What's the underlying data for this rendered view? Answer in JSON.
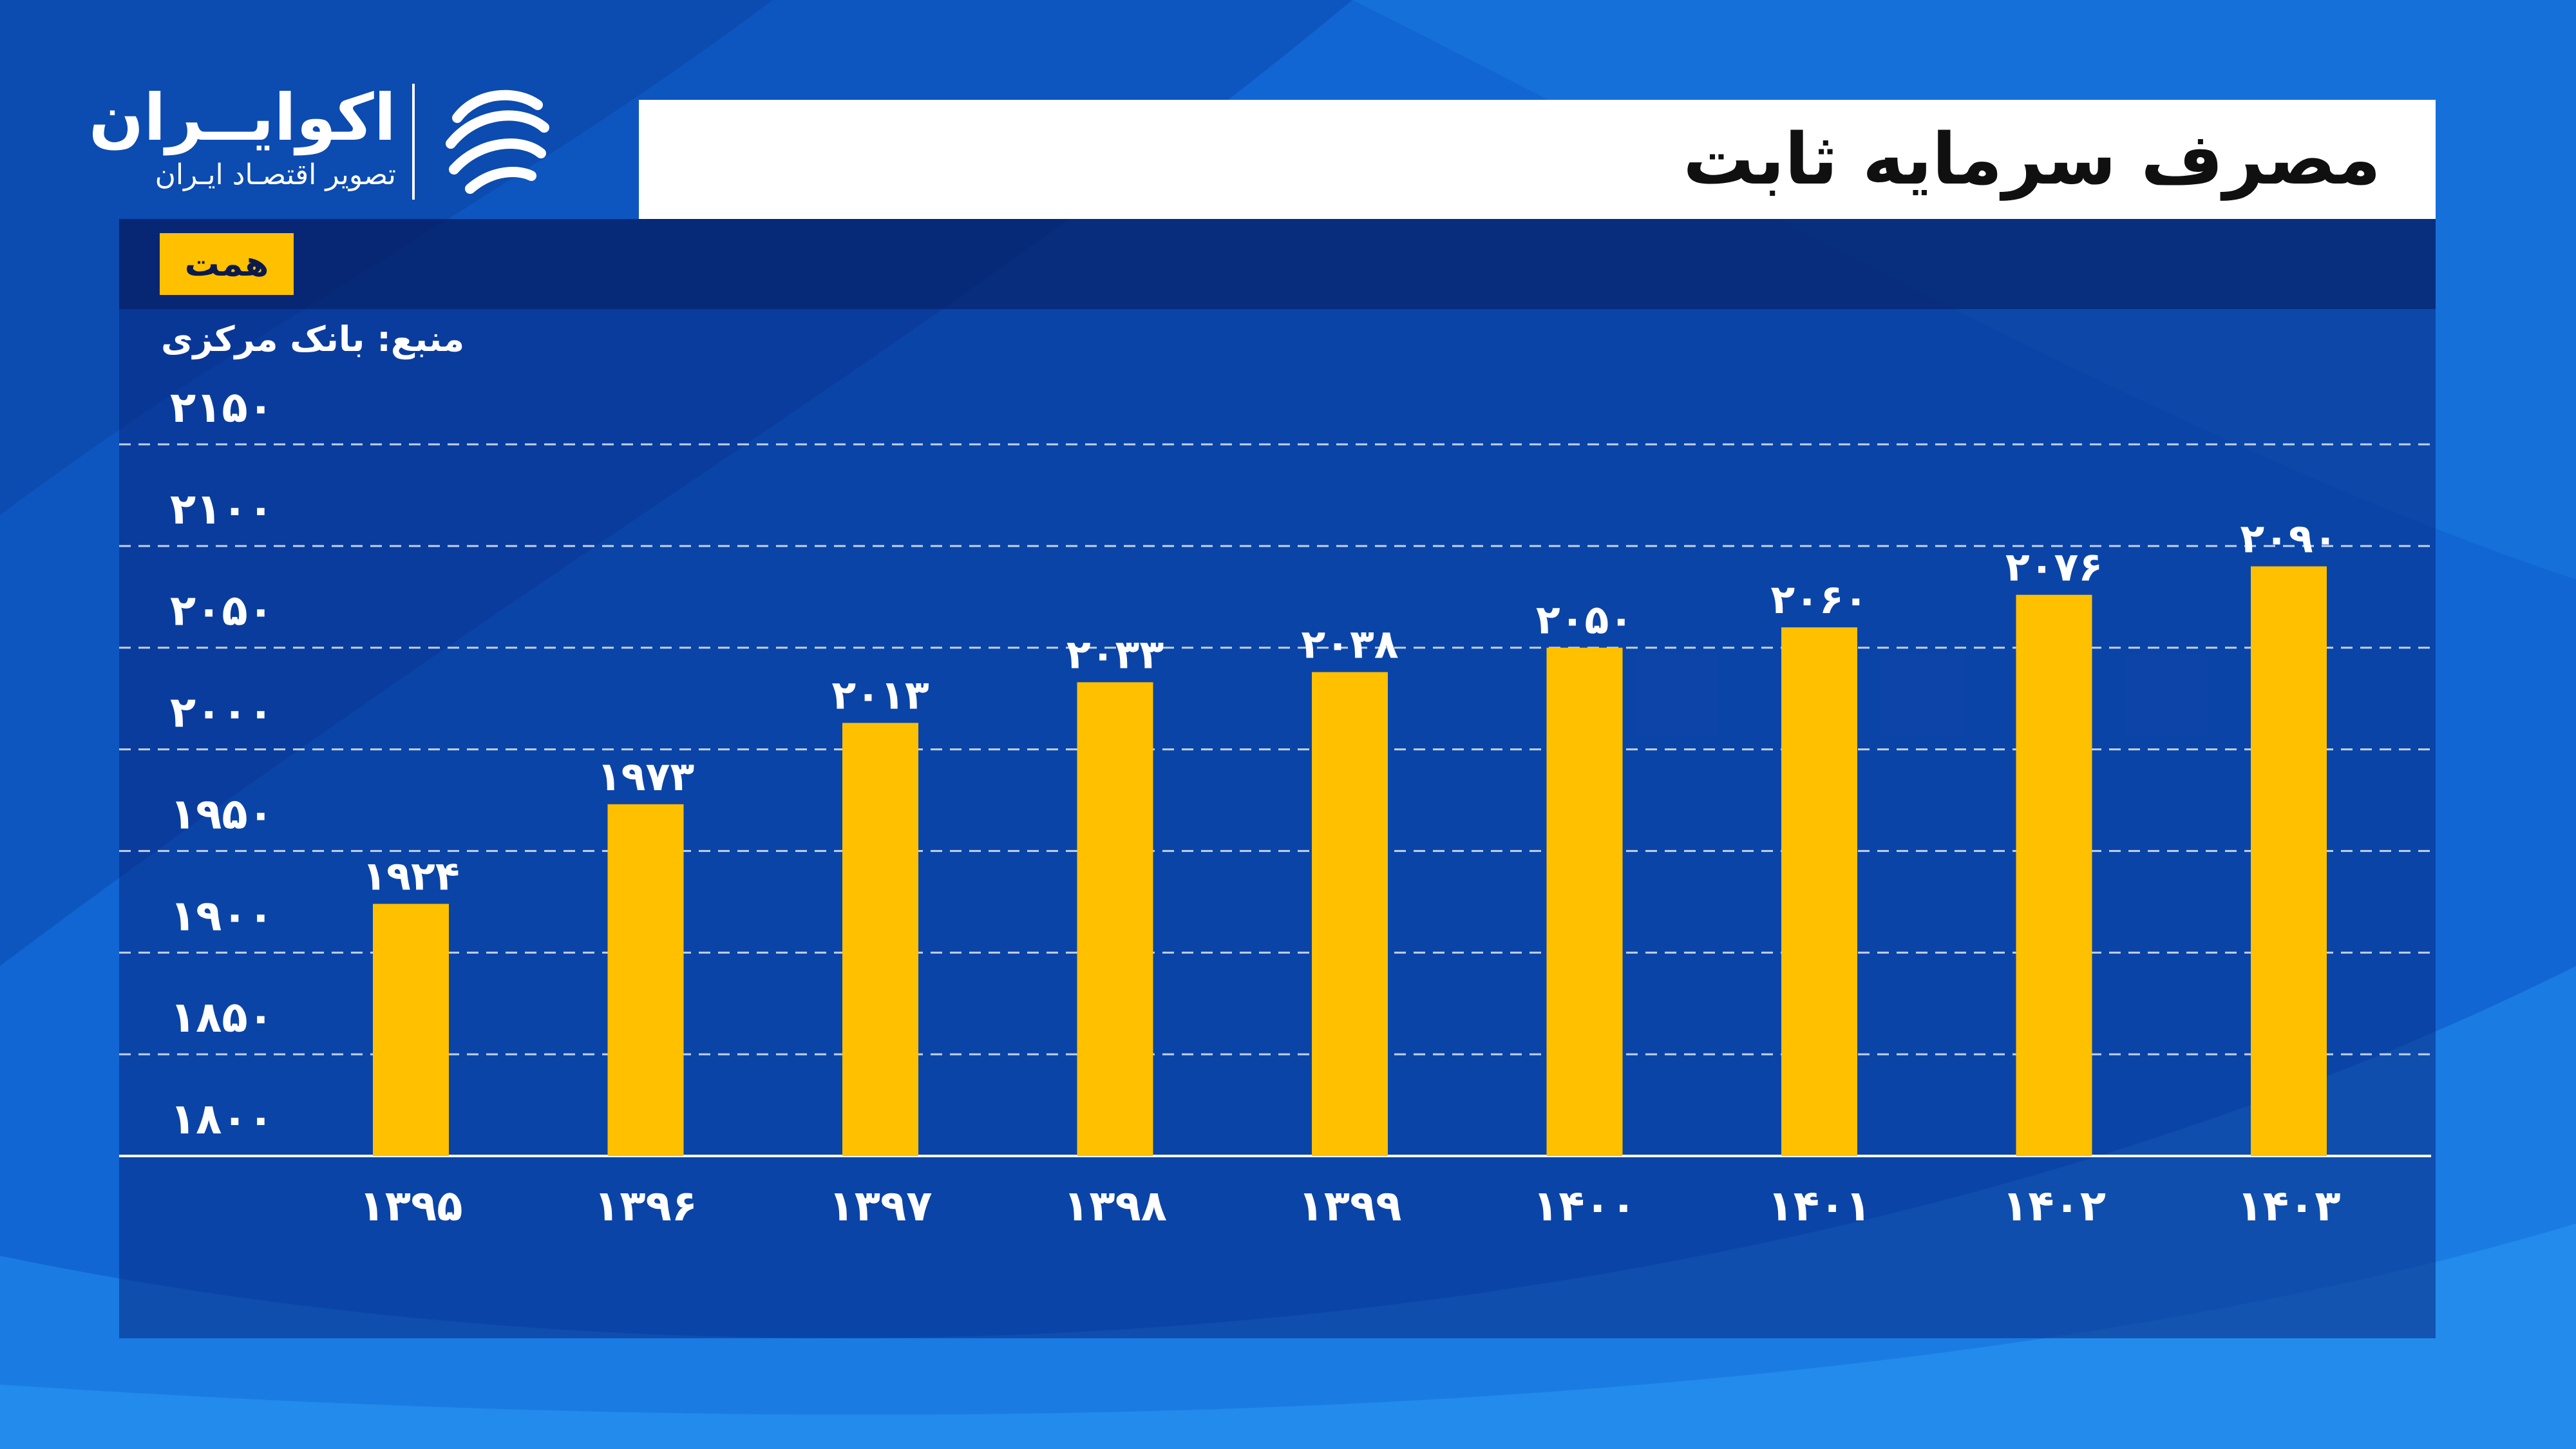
{
  "header": {
    "title": "مصرف سرمایه ثابت",
    "unit_badge": "همت",
    "source": "منبع: بانک مرکزی"
  },
  "brand": {
    "name": "اکوایــران",
    "tagline": "تصویر اقتصـاد ایـران"
  },
  "colors": {
    "bar": "#ffc000",
    "background": "#1066d2",
    "panel": "#0b3a8c",
    "text": "#ffffff"
  },
  "chart_data": {
    "type": "bar",
    "categories": [
      "۱۳۹۵",
      "۱۳۹۶",
      "۱۳۹۷",
      "۱۳۹۸",
      "۱۳۹۹",
      "۱۴۰۰",
      "۱۴۰۱",
      "۱۴۰۲",
      "۱۴۰۳"
    ],
    "values": [
      1924,
      1973,
      2013,
      2033,
      2038,
      2050,
      2060,
      2076,
      2090
    ],
    "value_labels": [
      "۱۹۲۴",
      "۱۹۷۳",
      "۲۰۱۳",
      "۲۰۳۳",
      "۲۰۳۸",
      "۲۰۵۰",
      "۲۰۶۰",
      "۲۰۷۶",
      "۲۰۹۰"
    ],
    "yticks": [
      1800,
      1850,
      1900,
      1950,
      2000,
      2050,
      2100,
      2150
    ],
    "ytick_labels": [
      "۱۸۰۰",
      "۱۸۵۰",
      "۱۹۰۰",
      "۱۹۵۰",
      "۲۰۰۰",
      "۲۰۵۰",
      "۲۱۰۰",
      "۲۱۵۰"
    ],
    "ylim": [
      1800,
      2150
    ],
    "grid": true,
    "title": "مصرف سرمایه ثابت",
    "xlabel": "",
    "ylabel": ""
  }
}
